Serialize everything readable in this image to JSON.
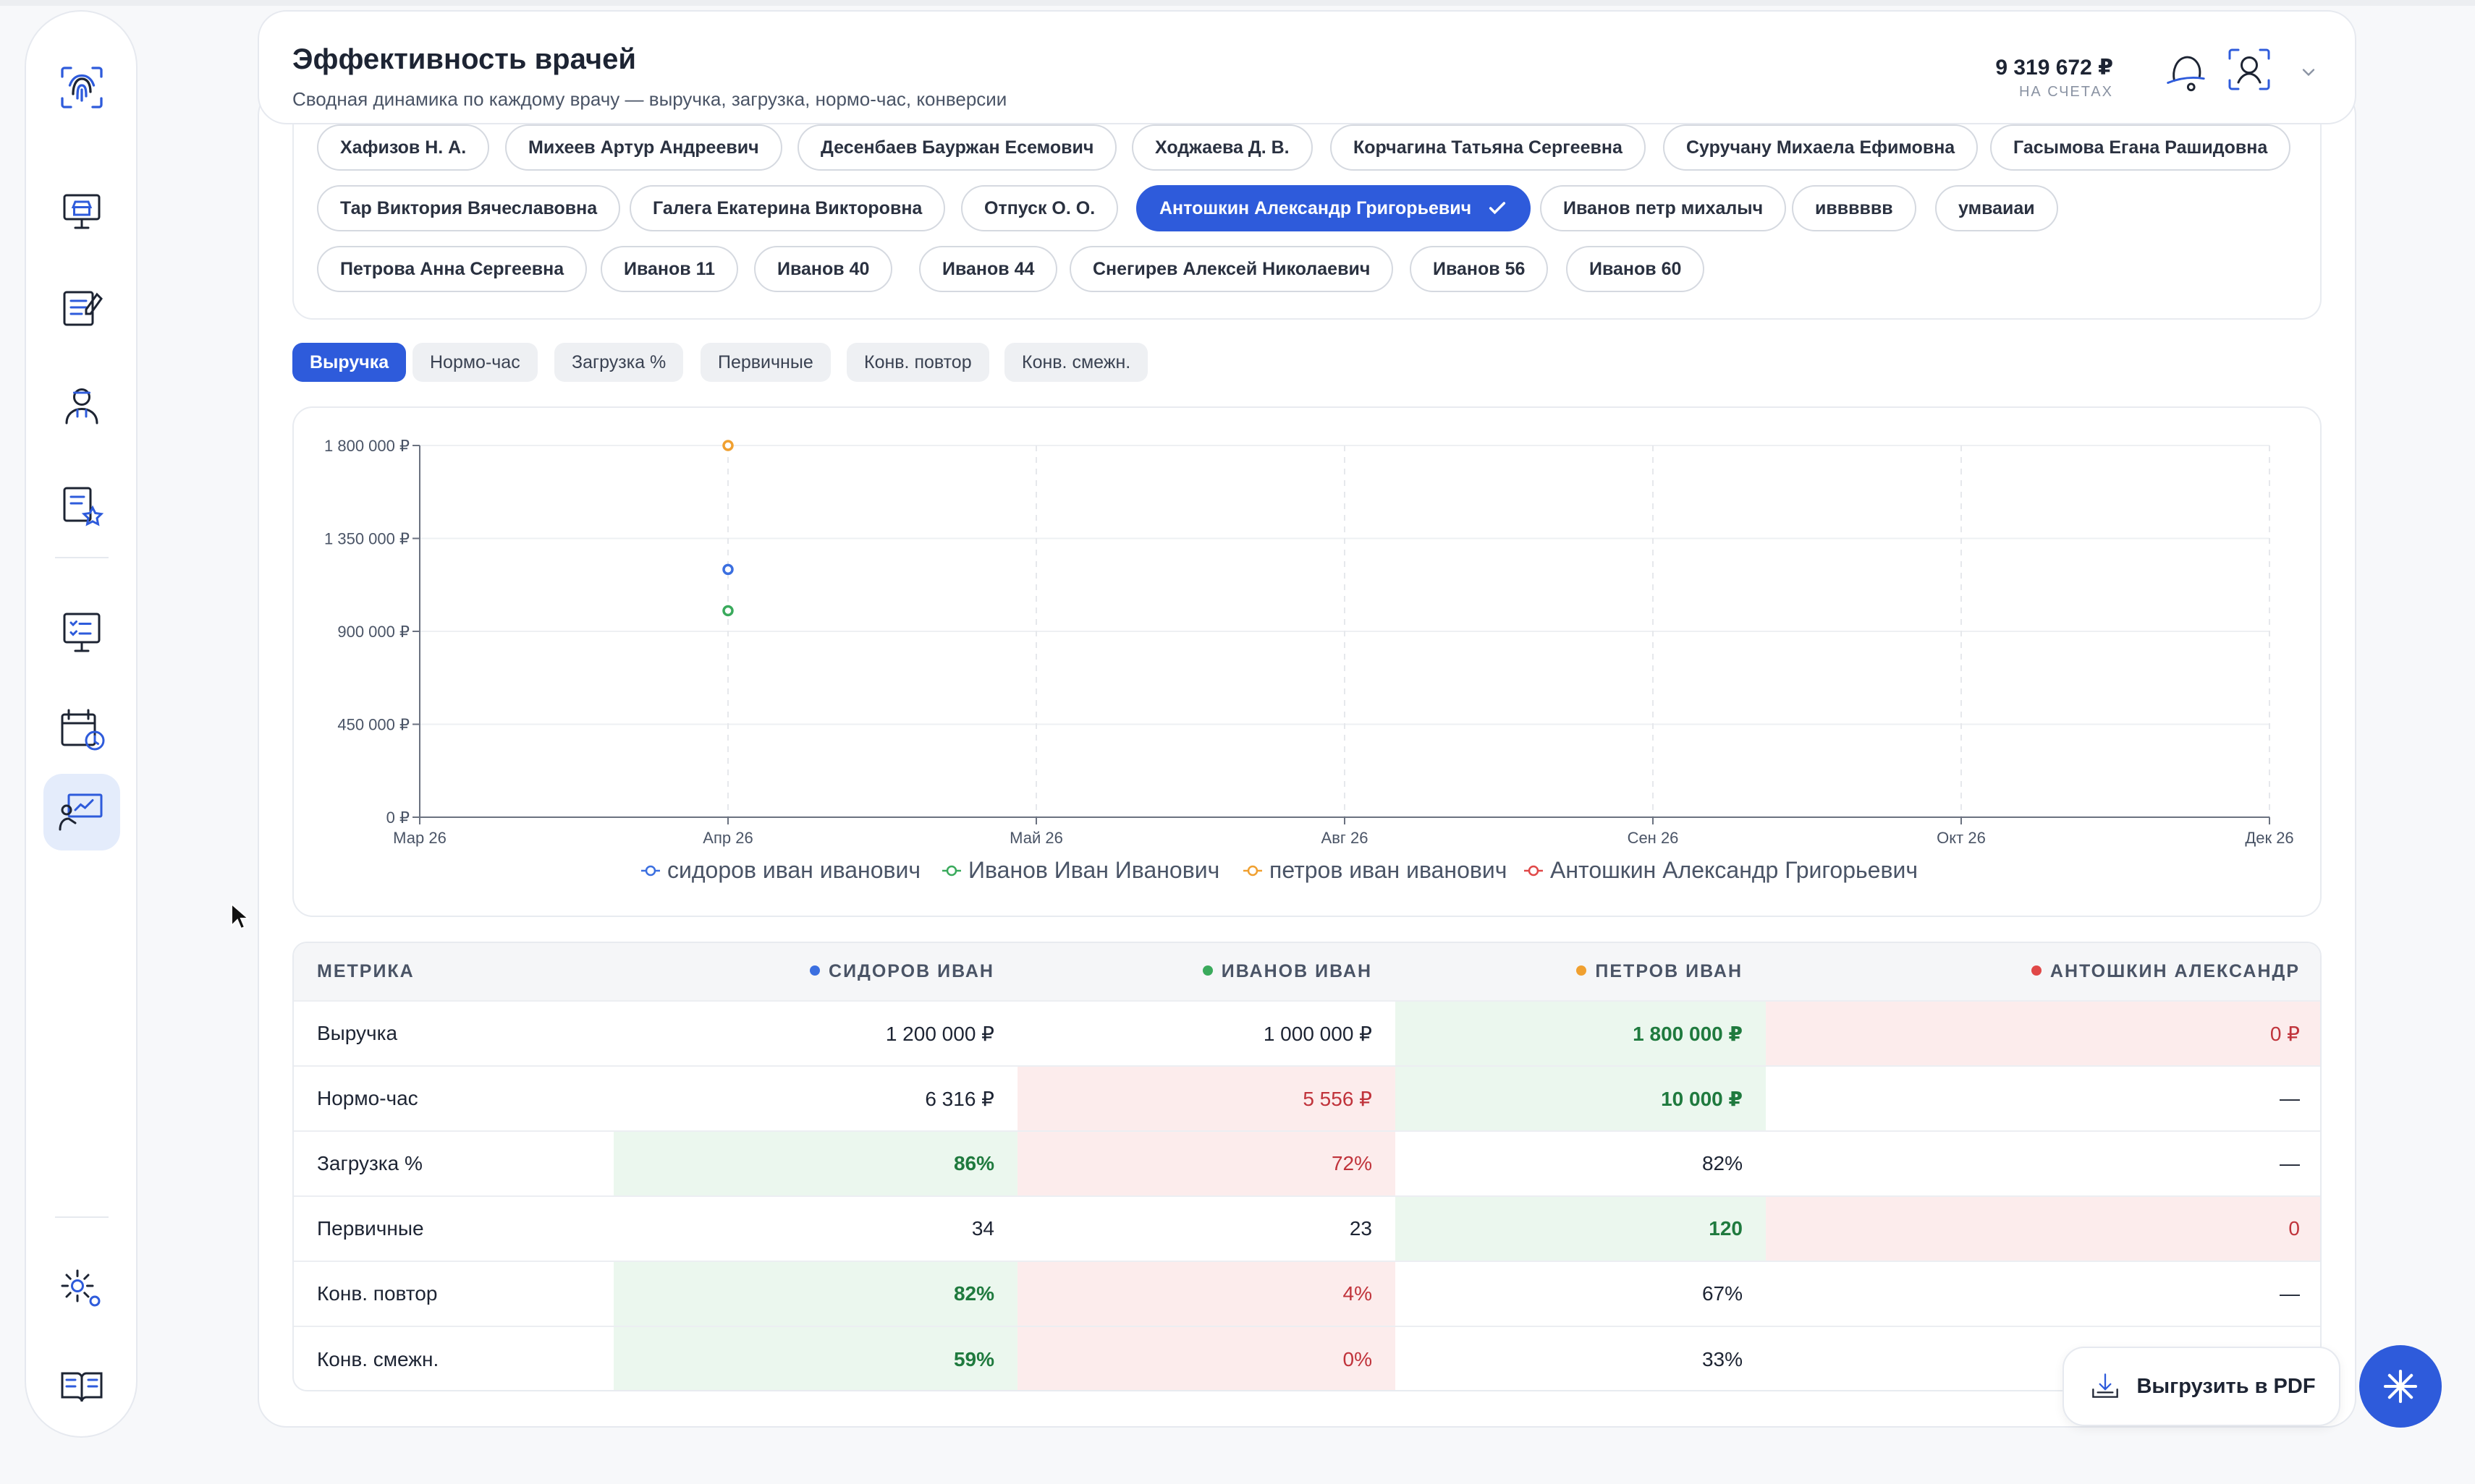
{
  "header": {
    "title": "Эффективность врачей",
    "subtitle": "Сводная динамика по каждому врачу — выручка, загрузка, нормо-час, конверсии",
    "balance": "9 319 672 ₽",
    "balance_label": "НА СЧЕТАХ"
  },
  "doctors": [
    {
      "name": "Хафизов Н. А.",
      "selected": false
    },
    {
      "name": "Михеев Артур Андреевич",
      "selected": false
    },
    {
      "name": "Десенбаев Бауржан Есемович",
      "selected": false
    },
    {
      "name": "Ходжаева Д. В.",
      "selected": false
    },
    {
      "name": "Корчагина Татьяна Сергеевна",
      "selected": false
    },
    {
      "name": "Суручану Михаела Ефимовна",
      "selected": false
    },
    {
      "name": "Гасымова Егана Рашидовна",
      "selected": false
    },
    {
      "name": "Тар Виктория Вячеславовна",
      "selected": false
    },
    {
      "name": "Галега Екатерина Викторовна",
      "selected": false
    },
    {
      "name": "Отпуск О. О.",
      "selected": false
    },
    {
      "name": "Антошкин Александр Григорьевич",
      "selected": true
    },
    {
      "name": "Иванов петр михалыч",
      "selected": false
    },
    {
      "name": "ивввввв",
      "selected": false
    },
    {
      "name": "умваиаи",
      "selected": false
    },
    {
      "name": "Петрова Анна Сергеевна",
      "selected": false
    },
    {
      "name": "Иванов 11",
      "selected": false
    },
    {
      "name": "Иванов 40",
      "selected": false
    },
    {
      "name": "Иванов 44",
      "selected": false
    },
    {
      "name": "Снегирев Алексей Николаевич",
      "selected": false
    },
    {
      "name": "Иванов 56",
      "selected": false
    },
    {
      "name": "Иванов 60",
      "selected": false
    }
  ],
  "tabs": [
    {
      "label": "Выручка",
      "active": true
    },
    {
      "label": "Нормо-час",
      "active": false
    },
    {
      "label": "Загрузка %",
      "active": false
    },
    {
      "label": "Первичные",
      "active": false
    },
    {
      "label": "Конв. повтор",
      "active": false
    },
    {
      "label": "Конв. смежн.",
      "active": false
    }
  ],
  "chart_data": {
    "type": "scatter",
    "x_ticks": [
      "Мар 26",
      "Апр 26",
      "Май 26",
      "Авг 26",
      "Сен 26",
      "Окт 26",
      "Дек 26"
    ],
    "y_ticks": [
      "0 ₽",
      "450 000 ₽",
      "900 000 ₽",
      "1 350 000 ₽",
      "1 800 000 ₽"
    ],
    "ylim": [
      0,
      1800000
    ],
    "grid": true,
    "legend_position": "bottom",
    "series": [
      {
        "name": "сидоров иван иванович",
        "color": "#3b6fe0",
        "points": [
          {
            "x": "Апр 26",
            "y": 1200000
          }
        ]
      },
      {
        "name": "Иванов Иван Иванович",
        "color": "#3aaa5c",
        "points": [
          {
            "x": "Апр 26",
            "y": 1000000
          }
        ]
      },
      {
        "name": "петров иван иванович",
        "color": "#f0a030",
        "points": [
          {
            "x": "Апр 26",
            "y": 1800000
          }
        ]
      },
      {
        "name": "Антошкин Александр Григорьевич",
        "color": "#e04848",
        "points": []
      }
    ]
  },
  "table": {
    "headers": [
      {
        "label": "МЕТРИКА",
        "color": ""
      },
      {
        "label": "СИДОРОВ ИВАН",
        "color": "#3b6fe0"
      },
      {
        "label": "ИВАНОВ ИВАН",
        "color": "#3aaa5c"
      },
      {
        "label": "ПЕТРОВ ИВАН",
        "color": "#f0a030"
      },
      {
        "label": "АНТОШКИН АЛЕКСАНДР",
        "color": "#e04848"
      }
    ],
    "rows": [
      {
        "metric": "Выручка",
        "cells": [
          {
            "v": "1 200 000 ₽",
            "s": ""
          },
          {
            "v": "1 000 000 ₽",
            "s": ""
          },
          {
            "v": "1 800 000 ₽",
            "s": "good"
          },
          {
            "v": "0 ₽",
            "s": "bad"
          }
        ]
      },
      {
        "metric": "Нормо-час",
        "cells": [
          {
            "v": "6 316 ₽",
            "s": ""
          },
          {
            "v": "5 556 ₽",
            "s": "bad"
          },
          {
            "v": "10 000 ₽",
            "s": "good"
          },
          {
            "v": "—",
            "s": ""
          }
        ]
      },
      {
        "metric": "Загрузка %",
        "cells": [
          {
            "v": "86%",
            "s": "good"
          },
          {
            "v": "72%",
            "s": "bad"
          },
          {
            "v": "82%",
            "s": ""
          },
          {
            "v": "—",
            "s": ""
          }
        ]
      },
      {
        "metric": "Первичные",
        "cells": [
          {
            "v": "34",
            "s": ""
          },
          {
            "v": "23",
            "s": ""
          },
          {
            "v": "120",
            "s": "good"
          },
          {
            "v": "0",
            "s": "bad"
          }
        ]
      },
      {
        "metric": "Конв. повтор",
        "cells": [
          {
            "v": "82%",
            "s": "good"
          },
          {
            "v": "4%",
            "s": "bad"
          },
          {
            "v": "67%",
            "s": ""
          },
          {
            "v": "—",
            "s": ""
          }
        ]
      },
      {
        "metric": "Конв. смежн.",
        "cells": [
          {
            "v": "59%",
            "s": "good"
          },
          {
            "v": "0%",
            "s": "bad"
          },
          {
            "v": "33%",
            "s": ""
          },
          {
            "v": "—",
            "s": ""
          }
        ]
      }
    ]
  },
  "actions": {
    "export_pdf": "Выгрузить в PDF"
  }
}
